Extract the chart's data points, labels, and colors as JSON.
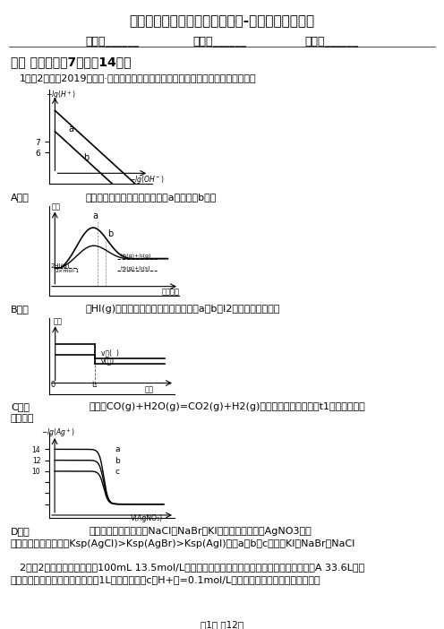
{
  "title": "四川省凉山彝族自治州高三理综-化学三模考试试卷",
  "name_label": "姓名：______",
  "class_label": "班级：______",
  "score_label": "成绩：______",
  "section1": "一、 单选题（共7题；共14分）",
  "q1": "1．（2分）（2019高二下·盐城期末）根据下列图示所得出的结论正确的是（　　）",
  "A_label": "A．图",
  "A_desc": "是水的电离与温度的关系曲线，a的温度比b的高",
  "B_label": "B．图",
  "B_desc": "是HI(g)分解能量与反应进程关系曲线，a、b中I2依次为固态、气态",
  "C_label": "C．图",
  "C_desc": "是反应CO(g)+H2O(g)=CO2(g)+H2(g)的速率与时间的关系，t1时改变条件是",
  "C_desc2": "减小压强",
  "D_label": "D．图",
  "D_desc": "是相同浓度相同体积的NaCl、NaBr及KI溶液分别用等浓度AgNO3溶液",
  "D_desc2": "的滴定曲线，若已知：Ksp(AgCl)>Ksp(AgBr)>Ksp(AgI)，则a、b、c依次是KI、NaBr和NaCl",
  "q2_line1": "2．（2分）将一定量的铝与100mL 13.5mol/L的浓硫酸充分反应后，待完全溶解，同时生成气体A 33.6L（标",
  "q2_line2": "准状况），将反应后的溶液稀释至1L，测得溶液中c（H+）=0.1mol/L，则下列叙述中错误的是（　　）",
  "page_label": "第1页 共12页",
  "background_color": "#ffffff"
}
